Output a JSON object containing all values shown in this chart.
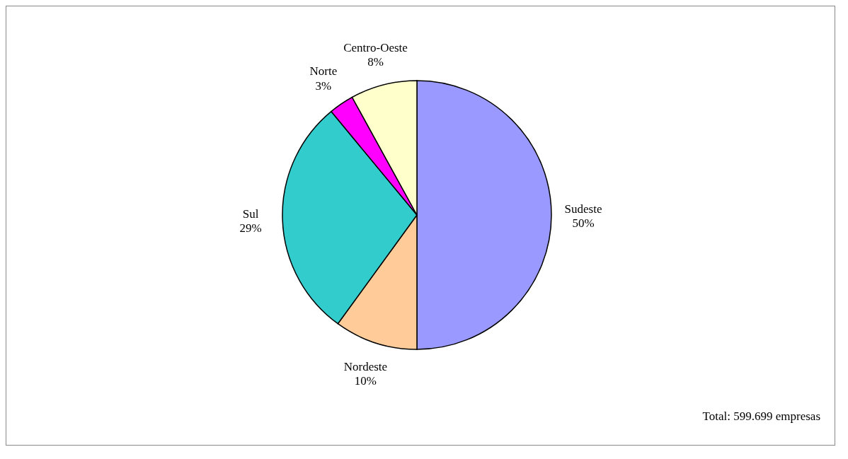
{
  "chart_data": {
    "type": "pie",
    "categories": [
      "Sudeste",
      "Nordeste",
      "Sul",
      "Norte",
      "Centro-Oeste"
    ],
    "values": [
      50,
      10,
      29,
      3,
      8
    ],
    "value_labels": [
      "50%",
      "10%",
      "29%",
      "3%",
      "8%"
    ],
    "colors": [
      "#9999ff",
      "#ffcc99",
      "#33cccc",
      "#ff00ff",
      "#ffffcc"
    ],
    "legend": false,
    "annotations": [
      "Total: 599.699 empresas"
    ]
  }
}
